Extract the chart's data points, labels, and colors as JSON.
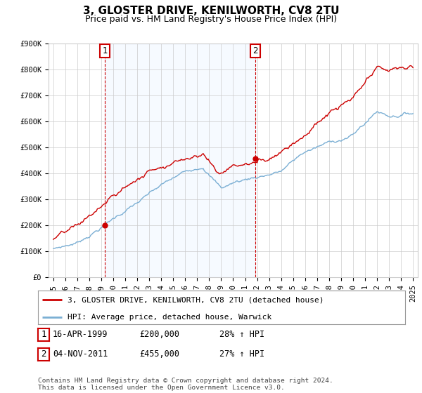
{
  "title": "3, GLOSTER DRIVE, KENILWORTH, CV8 2TU",
  "subtitle": "Price paid vs. HM Land Registry's House Price Index (HPI)",
  "ylim": [
    0,
    900000
  ],
  "yticks": [
    0,
    100000,
    200000,
    300000,
    400000,
    500000,
    600000,
    700000,
    800000,
    900000
  ],
  "ytick_labels": [
    "£0",
    "£100K",
    "£200K",
    "£300K",
    "£400K",
    "£500K",
    "£600K",
    "£700K",
    "£800K",
    "£900K"
  ],
  "hpi_color": "#7bafd4",
  "price_color": "#cc0000",
  "shade_color": "#ddeeff",
  "annotation_box_color": "#cc0000",
  "sale1_year": 1999.29,
  "sale1_price": 200000,
  "sale2_year": 2011.84,
  "sale2_price": 455000,
  "legend_line1": "3, GLOSTER DRIVE, KENILWORTH, CV8 2TU (detached house)",
  "legend_line2": "HPI: Average price, detached house, Warwick",
  "table_row1": [
    "1",
    "16-APR-1999",
    "£200,000",
    "28% ↑ HPI"
  ],
  "table_row2": [
    "2",
    "04-NOV-2011",
    "£455,000",
    "27% ↑ HPI"
  ],
  "footnote": "Contains HM Land Registry data © Crown copyright and database right 2024.\nThis data is licensed under the Open Government Licence v3.0.",
  "bg_color": "#ffffff",
  "grid_color": "#cccccc",
  "title_fontsize": 11,
  "subtitle_fontsize": 9,
  "tick_fontsize": 7.5
}
